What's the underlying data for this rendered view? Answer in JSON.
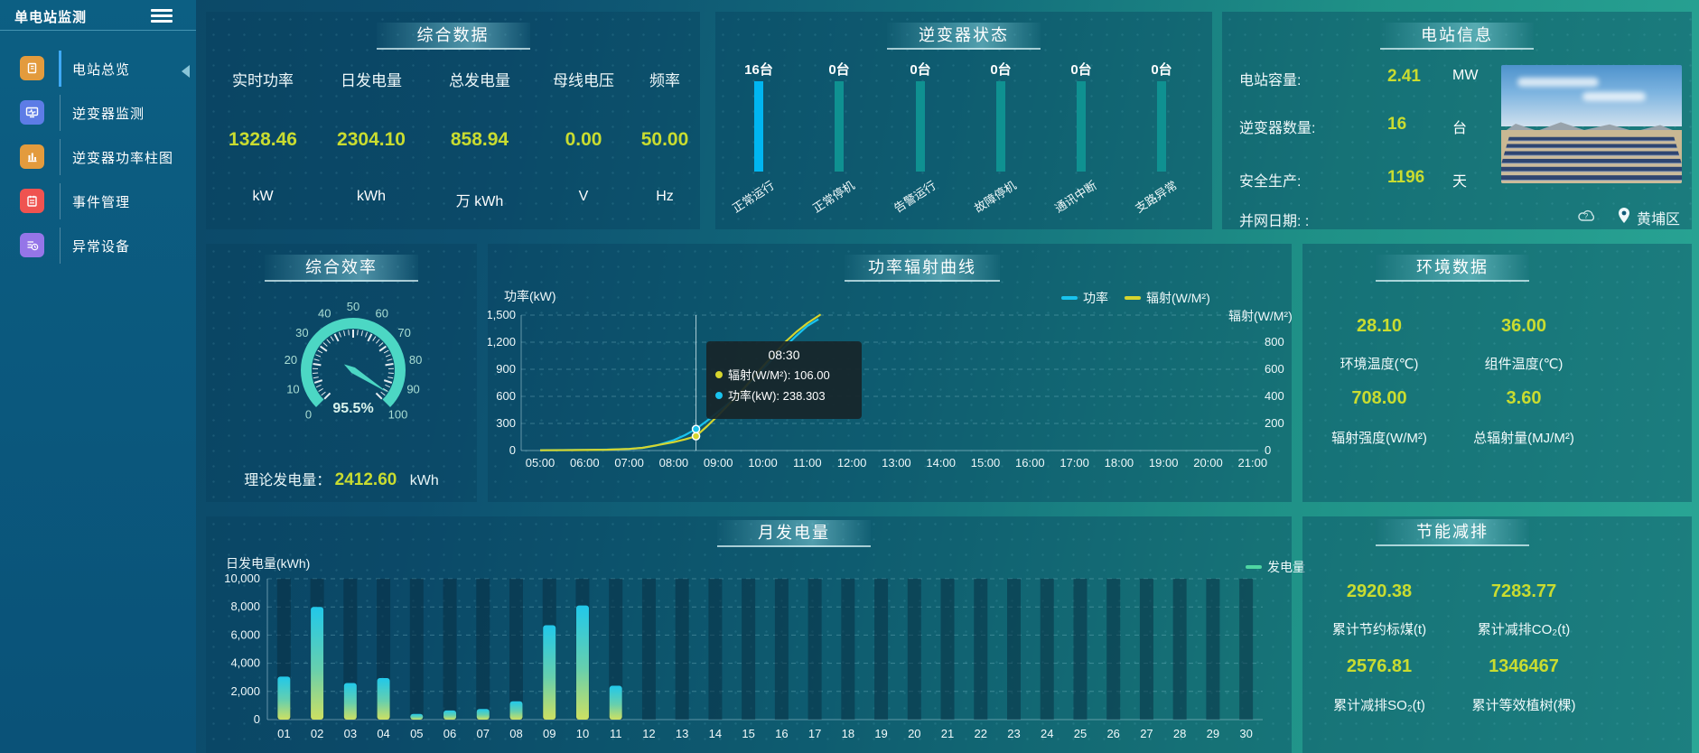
{
  "app": {
    "title": "单电站监测"
  },
  "sidebar": {
    "menu": [
      {
        "label": "电站总览",
        "icon": "overview-icon",
        "color": "#e39b3d",
        "active": true
      },
      {
        "label": "逆变器监测",
        "icon": "inverter-monitor-icon",
        "color": "#5d7ce6",
        "active": false
      },
      {
        "label": "逆变器功率柱图",
        "icon": "power-bars-icon",
        "color": "#e39b3d",
        "active": false
      },
      {
        "label": "事件管理",
        "icon": "event-management-icon",
        "color": "#ef5350",
        "active": false
      },
      {
        "label": "异常设备",
        "icon": "abnormal-device-icon",
        "color": "#9575e8",
        "active": false
      }
    ]
  },
  "panels": {
    "summary": {
      "title": "综合数据",
      "metrics": [
        {
          "label": "实时功率",
          "value": "1328.46",
          "unit": "kW"
        },
        {
          "label": "日发电量",
          "value": "2304.10",
          "unit": "kWh"
        },
        {
          "label": "总发电量",
          "value": "858.94",
          "unit": "万 kWh"
        },
        {
          "label": "母线电压",
          "value": "0.00",
          "unit": "V"
        },
        {
          "label": "频率",
          "value": "50.00",
          "unit": "Hz"
        }
      ]
    },
    "status": {
      "title": "逆变器状态"
    },
    "station": {
      "title": "电站信息",
      "rows": [
        {
          "label": "电站容量:",
          "value": "2.41",
          "unit": "MW"
        },
        {
          "label": "逆变器数量:",
          "value": "16",
          "unit": "台"
        },
        {
          "label": "安全生产:",
          "value": "1196",
          "unit": "天"
        },
        {
          "label": "并网日期: :",
          "value": "",
          "unit": ""
        }
      ],
      "location": "黄埔区"
    },
    "efficiency": {
      "title": "综合效率",
      "gauge_display": "95.5%",
      "theory_label": "理论发电量：",
      "theory_value": "2412.60",
      "theory_unit": "kWh"
    },
    "curve": {
      "title": "功率辐射曲线",
      "ylabel_left": "功率(kW)",
      "ylabel_right": "辐射(W/M²)",
      "legend": [
        {
          "label": "功率",
          "color": "#19c3ee"
        },
        {
          "label": "辐射(W/M²)",
          "color": "#d6d52e"
        }
      ],
      "tooltip": {
        "title": "08:30",
        "items": [
          {
            "name": "辐射(W/M²)",
            "value": "106.00",
            "color": "#d6d52e"
          },
          {
            "name": "功率(kW)",
            "value": "238.303",
            "color": "#19c3ee"
          }
        ]
      }
    },
    "env": {
      "title": "环境数据",
      "cells": [
        {
          "value": "28.10",
          "label": "环境温度(℃)"
        },
        {
          "value": "36.00",
          "label": "组件温度(℃)"
        },
        {
          "value": "708.00",
          "label": "辐射强度(W/M²)"
        },
        {
          "value": "3.60",
          "label": "总辐射量(MJ/M²)"
        }
      ]
    },
    "monthly": {
      "title": "月发电量",
      "ylabel": "日发电量(kWh)",
      "legend": "发电量"
    },
    "savings": {
      "title": "节能减排",
      "cells": [
        {
          "value": "2920.38",
          "label": "累计节约标煤(t)"
        },
        {
          "value": "7283.77",
          "label": "累计减排CO₂(t)"
        },
        {
          "value": "2576.81",
          "label": "累计减排SO₂(t)"
        },
        {
          "value": "1346467",
          "label": "累计等效植树(棵)"
        }
      ]
    }
  },
  "chart_data": [
    {
      "type": "bar",
      "title": "逆变器状态",
      "categories": [
        "正常运行",
        "正常停机",
        "告警运行",
        "故障停机",
        "通讯中断",
        "支路异常"
      ],
      "values": [
        16,
        0,
        0,
        0,
        0,
        0
      ],
      "unit": "台",
      "count_labels": [
        "16台",
        "0台",
        "0台",
        "0台",
        "0台",
        "0台"
      ],
      "highlight_color": "#00b6f1",
      "normal_color": "#0f9191"
    },
    {
      "type": "line",
      "title": "功率辐射曲线",
      "x_ticks": [
        "05:00",
        "06:00",
        "07:00",
        "08:00",
        "09:00",
        "10:00",
        "11:00",
        "12:00",
        "13:00",
        "14:00",
        "15:00",
        "16:00",
        "17:00",
        "18:00",
        "19:00",
        "20:00",
        "21:00"
      ],
      "x_range_hours": [
        5,
        21
      ],
      "ylabel_left": "功率(kW)",
      "ylim_left": [
        0,
        1500
      ],
      "yticks_left": [
        "0",
        "300",
        "600",
        "900",
        "1,200",
        "1,500"
      ],
      "ylabel_right": "辐射(W/M²)",
      "ylim_right": [
        0,
        1000
      ],
      "yticks_right": [
        "0",
        "200",
        "400",
        "600",
        "800"
      ],
      "crosshair_hour": 8.5,
      "series": [
        {
          "name": "功率",
          "axis": "left",
          "color": "#19c3ee",
          "points": [
            [
              5,
              4
            ],
            [
              5.5,
              5
            ],
            [
              6,
              7
            ],
            [
              6.5,
              10
            ],
            [
              7,
              18
            ],
            [
              7.3,
              30
            ],
            [
              7.6,
              55
            ],
            [
              8,
              115
            ],
            [
              8.25,
              170
            ],
            [
              8.5,
              238.3
            ],
            [
              8.75,
              330
            ],
            [
              9,
              430
            ],
            [
              9.25,
              530
            ],
            [
              9.5,
              650
            ],
            [
              9.75,
              770
            ],
            [
              10,
              900
            ],
            [
              10.25,
              1030
            ],
            [
              10.5,
              1150
            ],
            [
              10.75,
              1270
            ],
            [
              11,
              1380
            ],
            [
              11.25,
              1455
            ]
          ]
        },
        {
          "name": "辐射(W/M²)",
          "axis": "right",
          "color": "#d6d52e",
          "points": [
            [
              5,
              2
            ],
            [
              5.5,
              3
            ],
            [
              6,
              4
            ],
            [
              6.5,
              6
            ],
            [
              7,
              12
            ],
            [
              7.3,
              20
            ],
            [
              7.6,
              38
            ],
            [
              8,
              62
            ],
            [
              8.25,
              82
            ],
            [
              8.5,
              106
            ],
            [
              8.75,
              180
            ],
            [
              9,
              260
            ],
            [
              9.25,
              345
            ],
            [
              9.5,
              430
            ],
            [
              9.75,
              525
            ],
            [
              10,
              620
            ],
            [
              10.25,
              710
            ],
            [
              10.5,
              800
            ],
            [
              10.75,
              875
            ],
            [
              11,
              940
            ],
            [
              11.3,
              1005
            ]
          ]
        }
      ],
      "tooltip_point": {
        "time": "08:30",
        "radiation": 106.0,
        "power": 238.303
      }
    },
    {
      "type": "gauge",
      "title": "综合效率",
      "value": 95.5,
      "min": 0,
      "max": 100,
      "tick_labels": [
        "0",
        "10",
        "20",
        "30",
        "40",
        "50",
        "60",
        "70",
        "80",
        "90",
        "100"
      ],
      "display": "95.5%",
      "theory_generation_kwh": 2412.6
    },
    {
      "type": "bar",
      "title": "月发电量",
      "categories": [
        "01",
        "02",
        "03",
        "04",
        "05",
        "06",
        "07",
        "08",
        "09",
        "10",
        "11",
        "12",
        "13",
        "14",
        "15",
        "16",
        "17",
        "18",
        "19",
        "20",
        "21",
        "22",
        "23",
        "24",
        "25",
        "26",
        "27",
        "28",
        "29",
        "30"
      ],
      "values": [
        3050,
        8000,
        2600,
        2950,
        400,
        650,
        750,
        1300,
        6700,
        8100,
        2400,
        0,
        0,
        0,
        0,
        0,
        0,
        0,
        0,
        0,
        0,
        0,
        0,
        0,
        0,
        0,
        0,
        0,
        0,
        0
      ],
      "ylabel": "日发电量(kWh)",
      "ylim": [
        0,
        10000
      ],
      "yticks": [
        "0",
        "2,000",
        "4,000",
        "6,000",
        "8,000",
        "10,000"
      ],
      "legend": "发电量",
      "bar_gradient": [
        "#21c8ea",
        "#66cfae",
        "#cde062"
      ]
    }
  ]
}
